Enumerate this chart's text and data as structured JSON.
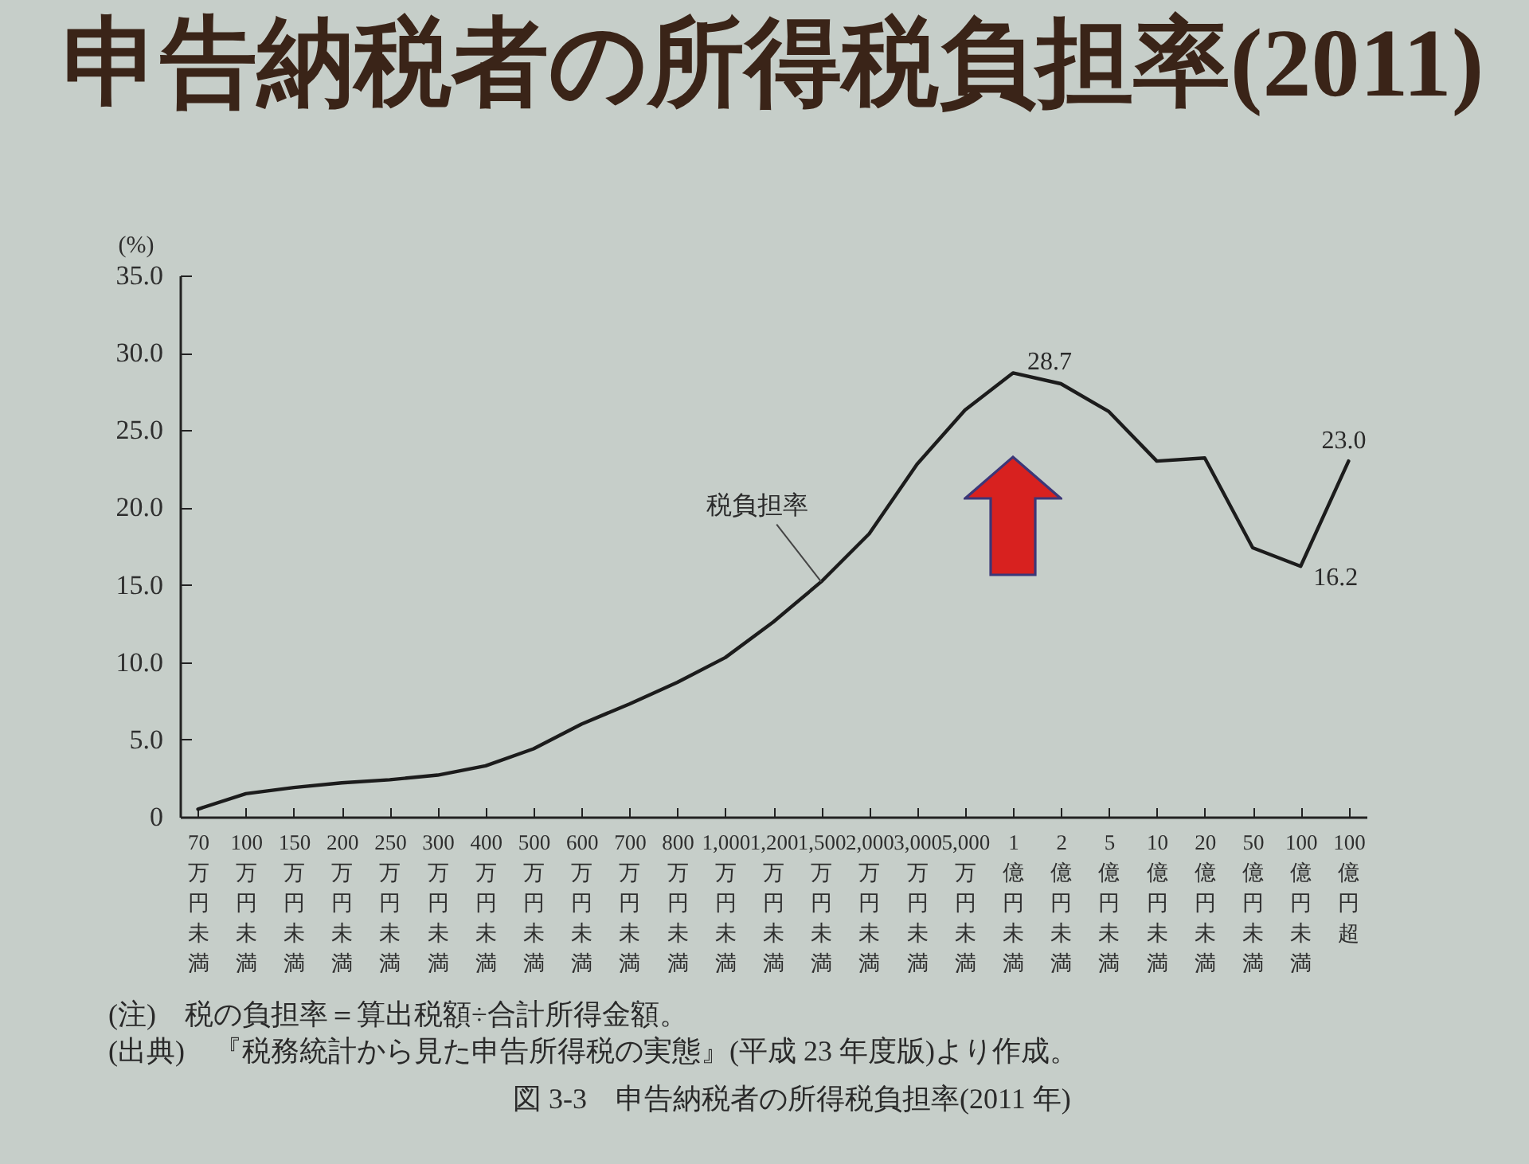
{
  "chart_data": {
    "type": "line",
    "title": "申告納税者の所得税負担率(2011)",
    "ylabel": "(%)",
    "categories": [
      "70万円未満",
      "100万円未満",
      "150万円未満",
      "200万円未満",
      "250万円未満",
      "300万円未満",
      "400万円未満",
      "500万円未満",
      "600万円未満",
      "700万円未満",
      "800万円未満",
      "1,000万円未満",
      "1,200万円未満",
      "1,500万円未満",
      "2,000万円未満",
      "3,000万円未満",
      "5,000万円未満",
      "1億円未満",
      "2億円未満",
      "5億円未満",
      "10億円未満",
      "20億円未満",
      "50億円未満",
      "100億円未満",
      "100億円超"
    ],
    "series": [
      {
        "name": "税負担率",
        "color": "#1c1c1c",
        "values": [
          0.5,
          1.5,
          1.9,
          2.2,
          2.4,
          2.7,
          3.3,
          4.4,
          6.0,
          7.3,
          8.7,
          10.3,
          12.6,
          15.2,
          18.3,
          22.8,
          26.3,
          28.7,
          28.0,
          26.2,
          23.0,
          23.2,
          17.4,
          16.2,
          23.0
        ],
        "value_labels": [
          null,
          null,
          null,
          null,
          null,
          null,
          null,
          null,
          null,
          null,
          null,
          null,
          null,
          null,
          null,
          null,
          null,
          "28.7",
          null,
          null,
          null,
          null,
          null,
          "16.2",
          "23.0"
        ]
      }
    ],
    "ylim": [
      0,
      35
    ],
    "yticks": [
      0,
      {
        "value": 5,
        "label": "5.0"
      },
      {
        "value": 10,
        "label": "10.0"
      },
      {
        "value": 15,
        "label": "15.0"
      },
      {
        "value": 20,
        "label": "20.0"
      },
      {
        "value": 25,
        "label": "25.0"
      },
      {
        "value": 30,
        "label": "30.0"
      },
      {
        "value": 35,
        "label": "35.0"
      }
    ],
    "grid": false,
    "annotations": [
      "(注)　税の負担率＝算出税額÷合計所得金額。",
      "(出典)　『税務統計から見た申告所得税の実態』(平成 23 年度版)より作成。",
      "図 3-3　申告納税者の所得税負担率(2011 年)"
    ]
  }
}
